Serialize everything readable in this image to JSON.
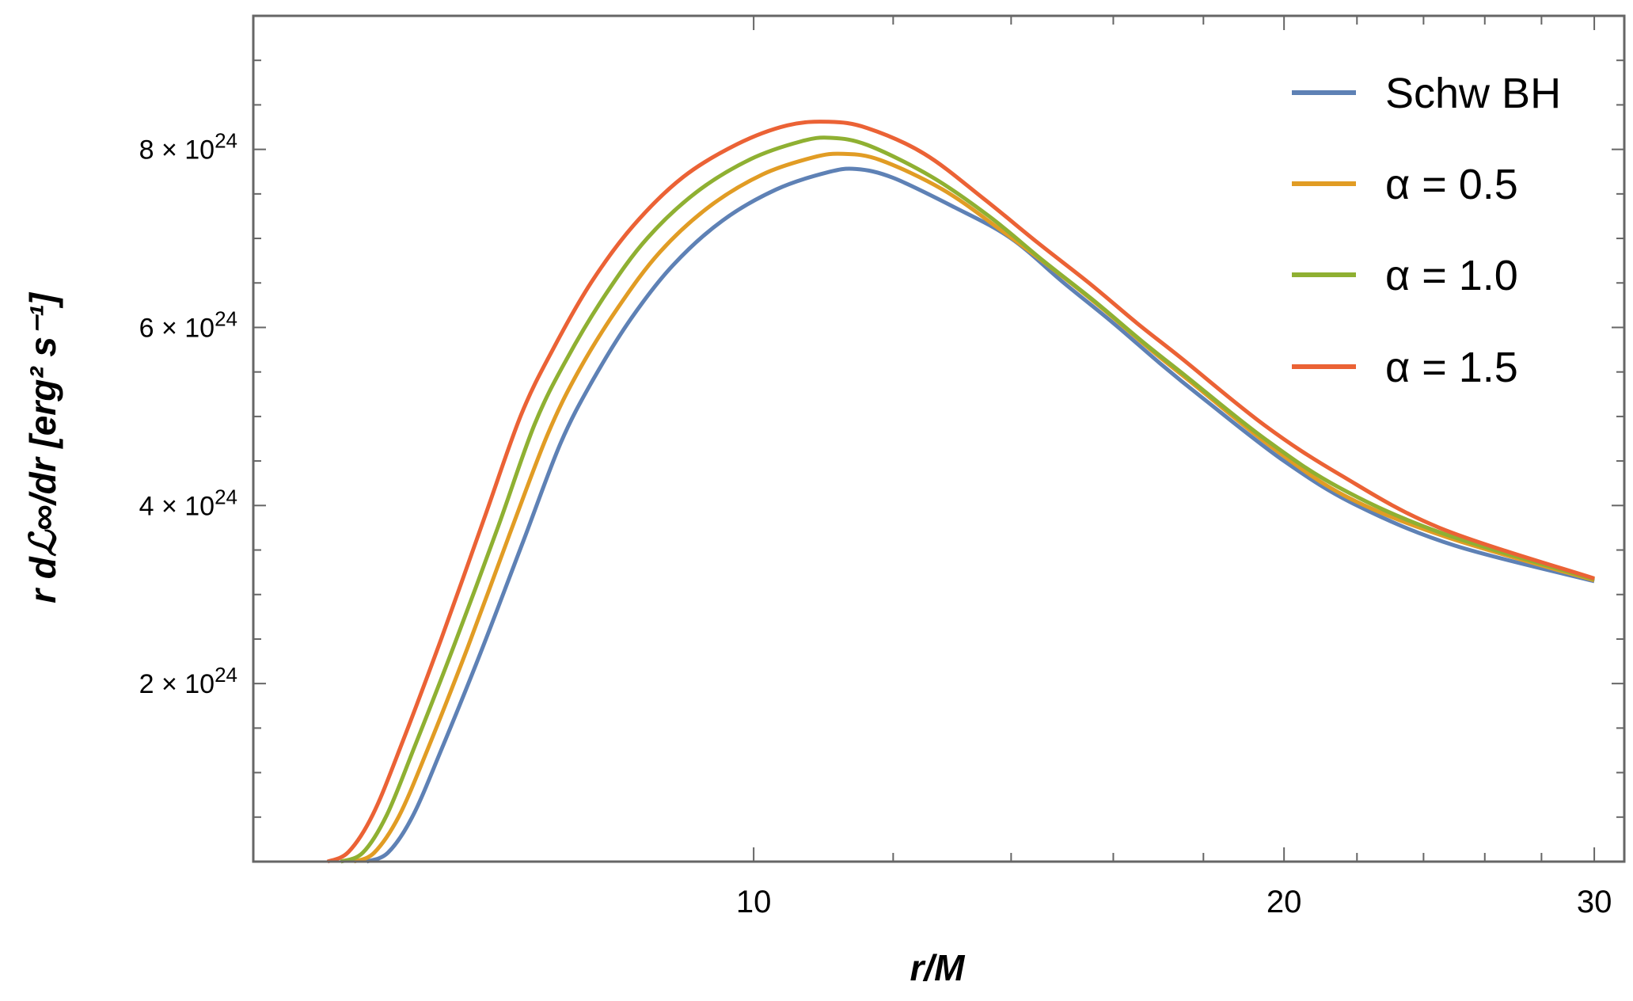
{
  "chart_data": {
    "type": "line",
    "title": "",
    "xlabel": "r/M",
    "ylabel": "r dℒ∞/dr  [erg² s⁻¹]",
    "xscale": "log",
    "xlim": [
      5.2,
      31.2
    ],
    "ylim": [
      0,
      9.5e+24
    ],
    "x_ticks": [
      {
        "value": 10,
        "label": "10"
      },
      {
        "value": 20,
        "label": "20"
      },
      {
        "value": 30,
        "label": "30"
      }
    ],
    "x_minor_ticks": [
      12,
      14,
      16,
      18,
      22,
      24,
      26,
      28
    ],
    "y_ticks": [
      {
        "value": 2e+24,
        "mantissa": "2",
        "label": "2 × 10",
        "exp": "24"
      },
      {
        "value": 4e+24,
        "mantissa": "4",
        "label": "4 × 10",
        "exp": "24"
      },
      {
        "value": 6e+24,
        "mantissa": "6",
        "label": "6 × 10",
        "exp": "24"
      },
      {
        "value": 8e+24,
        "mantissa": "8",
        "label": "8 × 10",
        "exp": "24"
      }
    ],
    "y_minor_step": 5e+23,
    "y_unit": 1e+24,
    "grid": false,
    "legend_position": "top-right",
    "series": [
      {
        "name": "Schw BH",
        "color": "#5E81B5",
        "x": [
          6.03,
          6.2,
          6.4,
          6.64,
          7.0,
          7.4,
          7.77,
          8.1,
          8.52,
          9.0,
          9.6,
          10.3,
          11.0,
          11.43,
          12,
          13,
          14,
          15,
          16,
          17,
          18,
          20,
          22,
          25,
          30
        ],
        "y": [
          0,
          0.1,
          0.5,
          1.23,
          2.35,
          3.6,
          4.7,
          5.4,
          6.1,
          6.7,
          7.2,
          7.55,
          7.74,
          7.78,
          7.68,
          7.35,
          7.0,
          6.5,
          6.05,
          5.6,
          5.2,
          4.5,
          4.0,
          3.55,
          3.15
        ]
      },
      {
        "name": "α = 0.5",
        "color": "#E19C24",
        "x": [
          5.93,
          6.09,
          6.29,
          6.53,
          6.88,
          7.27,
          7.64,
          7.96,
          8.38,
          8.85,
          9.44,
          10.12,
          10.81,
          11.24,
          11.8,
          12.8,
          13.8,
          14.8,
          15.8,
          16.8,
          17.8,
          19.7,
          21.7,
          24.7,
          30
        ],
        "y": [
          0,
          0.1,
          0.51,
          1.26,
          2.4,
          3.68,
          4.8,
          5.52,
          6.23,
          6.85,
          7.36,
          7.72,
          7.91,
          7.95,
          7.88,
          7.55,
          7.1,
          6.65,
          6.2,
          5.75,
          5.35,
          4.65,
          4.1,
          3.65,
          3.16
        ]
      },
      {
        "name": "α = 1.0",
        "color": "#8FB032",
        "x": [
          5.83,
          6.0,
          6.19,
          6.42,
          6.77,
          7.16,
          7.51,
          7.83,
          8.24,
          8.7,
          9.28,
          9.96,
          10.64,
          11.05,
          11.6,
          12.6,
          13.6,
          14.6,
          15.6,
          16.6,
          17.6,
          19.5,
          21.5,
          24.5,
          30
        ],
        "y": [
          0,
          0.1,
          0.52,
          1.29,
          2.46,
          3.76,
          4.91,
          5.64,
          6.37,
          7.0,
          7.52,
          7.89,
          8.09,
          8.13,
          8.05,
          7.7,
          7.25,
          6.75,
          6.3,
          5.85,
          5.45,
          4.75,
          4.2,
          3.7,
          3.17
        ]
      },
      {
        "name": "α = 1.5",
        "color": "#EB6235",
        "x": [
          5.73,
          5.89,
          6.08,
          6.31,
          6.65,
          7.03,
          7.38,
          7.7,
          8.09,
          8.55,
          9.12,
          9.79,
          10.45,
          11.03,
          11.6,
          12.5,
          13.5,
          14.5,
          15.5,
          16.5,
          17.5,
          19.5,
          21.5,
          24.5,
          30
        ],
        "y": [
          0,
          0.11,
          0.53,
          1.31,
          2.51,
          3.85,
          5.02,
          5.77,
          6.51,
          7.15,
          7.69,
          8.06,
          8.27,
          8.31,
          8.24,
          7.95,
          7.45,
          6.95,
          6.5,
          6.05,
          5.65,
          4.9,
          4.35,
          3.75,
          3.18
        ]
      }
    ]
  }
}
